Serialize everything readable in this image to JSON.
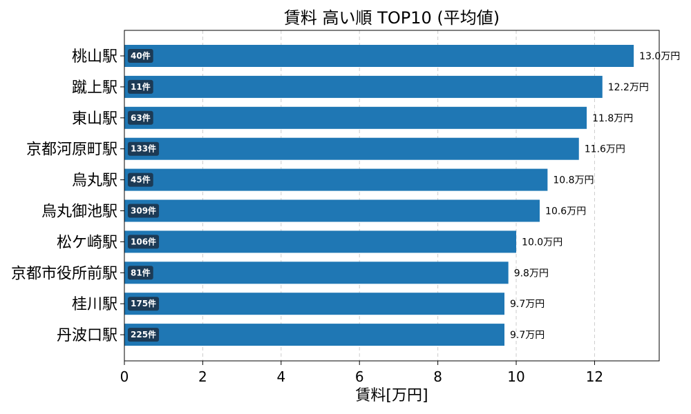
{
  "chart_data": {
    "type": "bar",
    "orientation": "horizontal",
    "title": "賃料 高い順 TOP10 (平均値)",
    "xlabel": "賃料[万円]",
    "ylabel": "",
    "xlim": [
      0,
      13.65
    ],
    "xticks": [
      "0",
      "2",
      "4",
      "6",
      "8",
      "10",
      "12"
    ],
    "grid": "x-dashed",
    "bar_color": "#1f77b4",
    "count_badge_color": "#1c3a55",
    "categories": [
      "桃山駅",
      "蹴上駅",
      "東山駅",
      "京都河原町駅",
      "烏丸駅",
      "烏丸御池駅",
      "松ケ崎駅",
      "京都市役所前駅",
      "桂川駅",
      "丹波口駅"
    ],
    "values": [
      13.0,
      12.2,
      11.8,
      11.6,
      10.8,
      10.6,
      10.0,
      9.8,
      9.7,
      9.7
    ],
    "value_labels": [
      "13.0万円",
      "12.2万円",
      "11.8万円",
      "11.6万円",
      "10.8万円",
      "10.6万円",
      "10.0万円",
      "9.8万円",
      "9.7万円",
      "9.7万円"
    ],
    "count_labels": [
      "40件",
      "11件",
      "63件",
      "133件",
      "45件",
      "309件",
      "106件",
      "81件",
      "175件",
      "225件"
    ]
  }
}
